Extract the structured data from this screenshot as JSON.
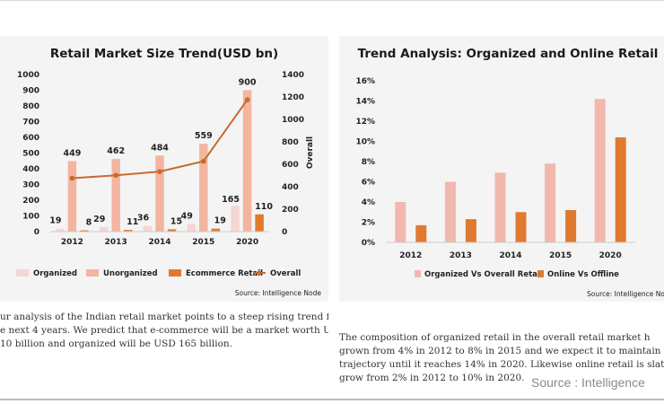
{
  "chart_data": [
    {
      "type": "bar+line",
      "title": "Retail Market Size Trend(USD bn)",
      "categories": [
        "2012",
        "2013",
        "2014",
        "2015",
        "2020"
      ],
      "series": [
        {
          "name": "Organized",
          "type": "bar",
          "axis": "left",
          "color": "#f4d6d2",
          "values": [
            19,
            29,
            36,
            49,
            165
          ],
          "labels": [
            "19",
            "29",
            "36",
            "49",
            "165"
          ]
        },
        {
          "name": "Unorganized",
          "type": "bar",
          "axis": "left",
          "color": "#f3b59f",
          "values": [
            449,
            462,
            484,
            559,
            900
          ],
          "labels": [
            "449",
            "462",
            "484",
            "559",
            "900"
          ]
        },
        {
          "name": "Ecommerce Retail",
          "type": "bar",
          "axis": "left",
          "color": "#e07a30",
          "values": [
            8,
            11,
            15,
            19,
            110
          ],
          "labels": [
            "8",
            "11",
            "15",
            "19",
            "110"
          ]
        },
        {
          "name": "Overall",
          "type": "line",
          "axis": "right",
          "color": "#c86a2e",
          "values": [
            476,
            502,
            535,
            627,
            1175
          ]
        }
      ],
      "y_left": {
        "min": 0,
        "max": 1000,
        "ticks": [
          "0",
          "100",
          "200",
          "300",
          "400",
          "500",
          "600",
          "700",
          "800",
          "900",
          "1000"
        ]
      },
      "y_right": {
        "label": "Overall",
        "min": 0,
        "max": 1400,
        "ticks": [
          "0",
          "200",
          "400",
          "600",
          "800",
          "1000",
          "1200",
          "1400"
        ]
      },
      "grid": false,
      "legend": "bottom",
      "source": "Source: Intelligence Node"
    },
    {
      "type": "bar",
      "title": "Trend Analysis: Organized and Online Retail",
      "categories": [
        "2012",
        "2013",
        "2014",
        "2015",
        "2020"
      ],
      "series": [
        {
          "name": "Organized Vs Overall Retail",
          "color": "#f2b8ad",
          "values": [
            4,
            6,
            6.9,
            7.8,
            14.2
          ]
        },
        {
          "name": "Online Vs Offline",
          "color": "#e07a30",
          "values": [
            1.7,
            2.3,
            3,
            3.2,
            10.4
          ]
        }
      ],
      "y": {
        "min": 0,
        "max": 16,
        "ticks": [
          "0%",
          "2%",
          "4%",
          "6%",
          "8%",
          "10%",
          "12%",
          "14%",
          "16%"
        ]
      },
      "grid": false,
      "legend": "bottom",
      "source": "Source: Intelligence Node"
    }
  ],
  "text": {
    "left_lines": [
      "ur analysis of the Indian retail market points to a steep rising trend for",
      "e next 4 years. We predict that e-commerce will be a market worth USD",
      "10 billion and organized will be USD 165 billion."
    ],
    "right_lines": [
      "The composition of organized retail in the overall retail market h",
      "grown from 4% in 2012 to 8% in 2015 and we expect it to maintain th",
      "trajectory until it reaches 14% in 2020. Likewise online retail is slated",
      "grow from 2% in 2012 to 10% in 2020."
    ],
    "watermark": "Source : Intelligence"
  }
}
